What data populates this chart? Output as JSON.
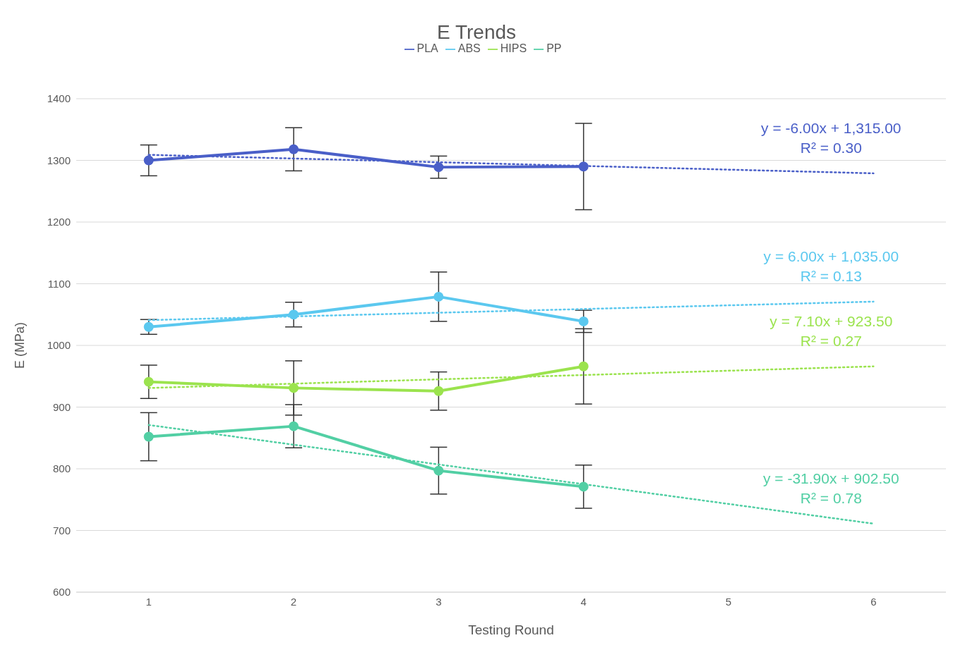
{
  "chart_data": {
    "type": "line",
    "title": "E Trends",
    "xlabel": "Testing Round",
    "ylabel": "E (MPa)",
    "xlim": [
      0.5,
      6.5
    ],
    "xticks": [
      1,
      2,
      3,
      4,
      5,
      6
    ],
    "ylim": [
      600,
      1400
    ],
    "yticks": [
      600,
      700,
      800,
      900,
      1000,
      1100,
      1200,
      1300,
      1400
    ],
    "grid": "y",
    "legend": "top",
    "marker": "circle",
    "line_style": "solid",
    "series": [
      {
        "name": "PLA",
        "color": "#4a5fc8",
        "x": [
          1,
          2,
          3,
          4
        ],
        "values": [
          1300,
          1318,
          1289,
          1290
        ],
        "errors": [
          25,
          35,
          18,
          70
        ]
      },
      {
        "name": "ABS",
        "color": "#5bc8ef",
        "x": [
          1,
          2,
          3,
          4
        ],
        "values": [
          1030,
          1050,
          1079,
          1039
        ],
        "errors": [
          12,
          20,
          40,
          18
        ]
      },
      {
        "name": "HIPS",
        "color": "#9be34e",
        "x": [
          1,
          2,
          3,
          4
        ],
        "values": [
          941,
          931,
          926,
          966
        ],
        "errors": [
          27,
          44,
          31,
          61
        ]
      },
      {
        "name": "PP",
        "color": "#52cfa4",
        "x": [
          1,
          2,
          3,
          4
        ],
        "values": [
          852,
          869,
          797,
          771
        ],
        "errors": [
          39,
          35,
          38,
          35
        ]
      },
      {
        "type": "line",
        "color": "#4a5fc8",
        "x": [
          1,
          6
        ],
        "values": [
          1309,
          1279
        ],
        "marker": "none",
        "line_style": "dotted"
      },
      {
        "type": "line",
        "color": "#5bc8ef",
        "x": [
          1,
          6
        ],
        "values": [
          1041,
          1071
        ],
        "marker": "none",
        "line_style": "dotted"
      },
      {
        "type": "line",
        "color": "#9be34e",
        "x": [
          1,
          6
        ],
        "values": [
          931,
          966
        ],
        "marker": "none",
        "line_style": "dotted"
      },
      {
        "type": "line",
        "color": "#52cfa4",
        "x": [
          1,
          6
        ],
        "values": [
          871,
          711
        ],
        "marker": "none",
        "line_style": "dotted"
      }
    ],
    "annotations": [
      "y = -6.00x + 1,315.00",
      "R² = 0.30",
      "y = 6.00x + 1,035.00",
      "R² = 0.13",
      "y = 7.10x + 923.50",
      "R² = 0.27",
      "y = -31.90x + 902.50",
      "R² = 0.78"
    ]
  }
}
